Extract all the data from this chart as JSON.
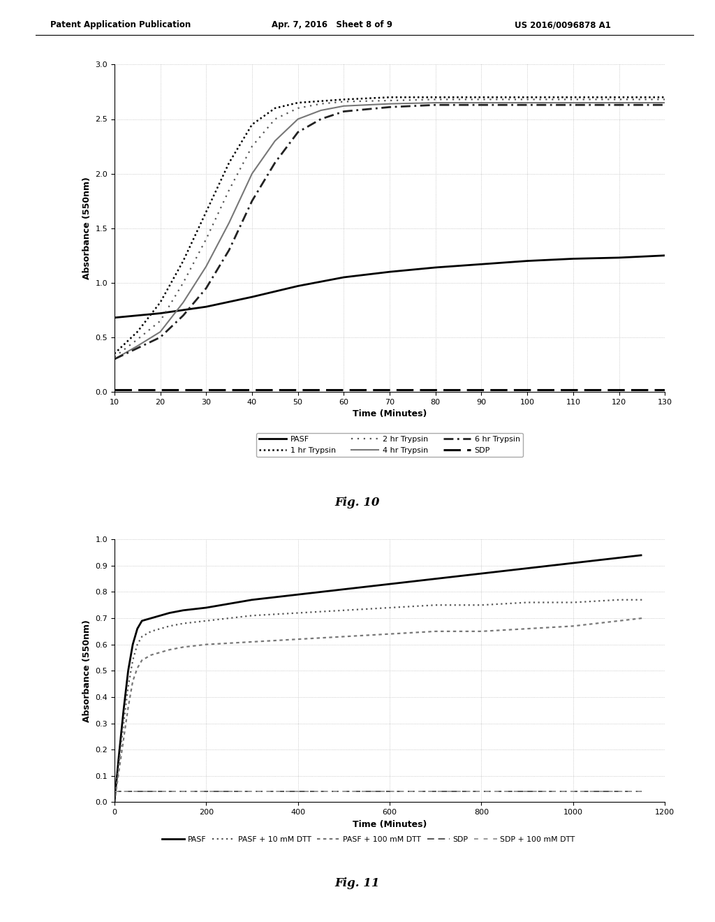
{
  "header_left": "Patent Application Publication",
  "header_mid": "Apr. 7, 2016   Sheet 8 of 9",
  "header_right": "US 2016/0096878 A1",
  "fig10": {
    "title": "Fig. 10",
    "xlabel": "Time (Minutes)",
    "ylabel": "Absorbance (550nm)",
    "xlim": [
      10,
      130
    ],
    "ylim": [
      0,
      3
    ],
    "xticks": [
      10,
      20,
      30,
      40,
      50,
      60,
      70,
      80,
      90,
      100,
      110,
      120,
      130
    ],
    "yticks": [
      0,
      0.5,
      1,
      1.5,
      2,
      2.5,
      3
    ],
    "series": {
      "PASF": {
        "x": [
          10,
          20,
          30,
          40,
          50,
          60,
          70,
          80,
          90,
          100,
          110,
          120,
          130
        ],
        "y": [
          0.68,
          0.72,
          0.78,
          0.87,
          0.97,
          1.05,
          1.1,
          1.14,
          1.17,
          1.2,
          1.22,
          1.23,
          1.25
        ],
        "style": "solid",
        "color": "#000000",
        "lw": 2.0,
        "label": "PASF"
      },
      "1hr_Trypsin": {
        "x": [
          10,
          15,
          20,
          25,
          30,
          35,
          40,
          45,
          50,
          60,
          70,
          80,
          90,
          100,
          110,
          120,
          130
        ],
        "y": [
          0.35,
          0.55,
          0.82,
          1.2,
          1.65,
          2.1,
          2.45,
          2.6,
          2.65,
          2.68,
          2.7,
          2.7,
          2.7,
          2.7,
          2.7,
          2.7,
          2.7
        ],
        "style": "dotted",
        "color": "#000000",
        "lw": 1.8,
        "label": "1 hr Trypsin"
      },
      "2hr_Trypsin": {
        "x": [
          10,
          15,
          20,
          25,
          30,
          35,
          40,
          45,
          50,
          55,
          60,
          70,
          80,
          90,
          100,
          110,
          120,
          130
        ],
        "y": [
          0.32,
          0.48,
          0.65,
          1.0,
          1.4,
          1.85,
          2.25,
          2.5,
          2.6,
          2.64,
          2.66,
          2.67,
          2.68,
          2.68,
          2.68,
          2.68,
          2.68,
          2.68
        ],
        "style": "dotted_sparse",
        "color": "#555555",
        "lw": 1.6,
        "label": "2 hr Trypsin"
      },
      "4hr_Trypsin": {
        "x": [
          10,
          15,
          20,
          25,
          30,
          35,
          40,
          45,
          50,
          55,
          60,
          70,
          80,
          90,
          100,
          110,
          120,
          130
        ],
        "y": [
          0.3,
          0.42,
          0.55,
          0.82,
          1.15,
          1.55,
          2.0,
          2.3,
          2.5,
          2.58,
          2.62,
          2.64,
          2.65,
          2.65,
          2.65,
          2.65,
          2.65,
          2.65
        ],
        "style": "solid_gray",
        "color": "#777777",
        "lw": 1.5,
        "label": "4 hr Trypsin"
      },
      "6hr_Trypsin": {
        "x": [
          10,
          15,
          20,
          25,
          30,
          35,
          40,
          45,
          50,
          55,
          60,
          70,
          80,
          90,
          100,
          110,
          120,
          130
        ],
        "y": [
          0.3,
          0.4,
          0.5,
          0.7,
          0.95,
          1.3,
          1.75,
          2.1,
          2.38,
          2.5,
          2.57,
          2.61,
          2.63,
          2.63,
          2.63,
          2.63,
          2.63,
          2.63
        ],
        "style": "dashdot",
        "color": "#222222",
        "lw": 2.0,
        "label": "6 hr Trypsin"
      },
      "SDP": {
        "x": [
          10,
          20,
          30,
          40,
          50,
          60,
          70,
          80,
          90,
          100,
          110,
          120,
          130
        ],
        "y": [
          0.02,
          0.02,
          0.02,
          0.02,
          0.02,
          0.02,
          0.02,
          0.02,
          0.02,
          0.02,
          0.02,
          0.02,
          0.02
        ],
        "style": "dashed_long",
        "color": "#000000",
        "lw": 2.2,
        "label": "SDP"
      }
    }
  },
  "fig11": {
    "title": "Fig. 11",
    "xlabel": "Time (Minutes)",
    "ylabel": "Absorbance (550nm)",
    "xlim": [
      0,
      1200
    ],
    "ylim": [
      0,
      1
    ],
    "xticks": [
      0,
      200,
      400,
      600,
      800,
      1000,
      1200
    ],
    "yticks": [
      0,
      0.1,
      0.2,
      0.3,
      0.4,
      0.5,
      0.6,
      0.7,
      0.8,
      0.9,
      1.0
    ],
    "series": {
      "PASF": {
        "x": [
          0,
          10,
          20,
          30,
          40,
          50,
          60,
          80,
          100,
          120,
          150,
          200,
          300,
          400,
          500,
          600,
          700,
          800,
          900,
          1000,
          1100,
          1150
        ],
        "y": [
          0.0,
          0.18,
          0.35,
          0.5,
          0.6,
          0.66,
          0.69,
          0.7,
          0.71,
          0.72,
          0.73,
          0.74,
          0.77,
          0.79,
          0.81,
          0.83,
          0.85,
          0.87,
          0.89,
          0.91,
          0.93,
          0.94
        ],
        "style": "solid",
        "color": "#000000",
        "lw": 2.0,
        "label": "PASF"
      },
      "PASF_10mM": {
        "x": [
          0,
          10,
          20,
          30,
          40,
          50,
          60,
          80,
          100,
          120,
          150,
          200,
          300,
          400,
          500,
          600,
          700,
          800,
          900,
          1000,
          1100,
          1150
        ],
        "y": [
          0.0,
          0.15,
          0.3,
          0.44,
          0.54,
          0.6,
          0.63,
          0.65,
          0.66,
          0.67,
          0.68,
          0.69,
          0.71,
          0.72,
          0.73,
          0.74,
          0.75,
          0.75,
          0.76,
          0.76,
          0.77,
          0.77
        ],
        "style": "dotted_fine",
        "color": "#555555",
        "lw": 1.6,
        "label": "PASF + 10 mM DTT"
      },
      "PASF_100mM": {
        "x": [
          0,
          10,
          20,
          30,
          40,
          50,
          60,
          80,
          100,
          120,
          150,
          200,
          300,
          400,
          500,
          600,
          700,
          800,
          900,
          1000,
          1100,
          1150
        ],
        "y": [
          0.0,
          0.12,
          0.24,
          0.36,
          0.46,
          0.51,
          0.54,
          0.56,
          0.57,
          0.58,
          0.59,
          0.6,
          0.61,
          0.62,
          0.63,
          0.64,
          0.65,
          0.65,
          0.66,
          0.67,
          0.69,
          0.7
        ],
        "style": "dotted_med",
        "color": "#777777",
        "lw": 1.6,
        "label": "PASF + 100 mM DTT"
      },
      "SDP": {
        "x": [
          0,
          100,
          200,
          300,
          400,
          500,
          600,
          700,
          800,
          900,
          1000,
          1100,
          1150
        ],
        "y": [
          0.04,
          0.04,
          0.04,
          0.04,
          0.04,
          0.04,
          0.04,
          0.04,
          0.04,
          0.04,
          0.04,
          0.04,
          0.04
        ],
        "style": "dashed_fine",
        "color": "#555555",
        "lw": 1.4,
        "label": "SDP"
      },
      "SDP_100mM": {
        "x": [
          0,
          100,
          200,
          300,
          400,
          500,
          600,
          700,
          800,
          900,
          1000,
          1100,
          1150
        ],
        "y": [
          0.04,
          0.04,
          0.04,
          0.04,
          0.04,
          0.04,
          0.04,
          0.04,
          0.04,
          0.04,
          0.04,
          0.04,
          0.04
        ],
        "style": "dashed_sparse",
        "color": "#999999",
        "lw": 1.4,
        "label": "SDP + 100 mM DTT"
      }
    }
  }
}
